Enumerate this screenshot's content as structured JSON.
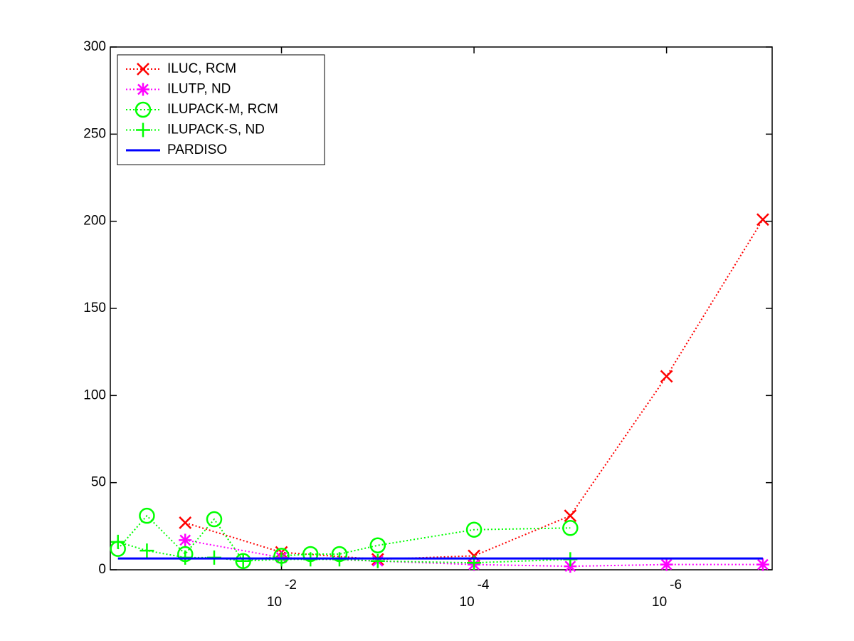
{
  "chart_data": {
    "type": "line",
    "xscale": "log",
    "xlim": [
      0.6,
      8e-08
    ],
    "ylim": [
      0,
      300
    ],
    "yticks": [
      0,
      50,
      100,
      150,
      200,
      250,
      300
    ],
    "xticks": [
      {
        "value": 0.01,
        "label": "10",
        "exponent": "-2"
      },
      {
        "value": 0.0001,
        "label": "10",
        "exponent": "-4"
      },
      {
        "value": 1e-06,
        "label": "10",
        "exponent": "-6"
      }
    ],
    "legend": "upper left",
    "series": [
      {
        "name": "ILUC, RCM",
        "color": "#ff0000",
        "marker": "x",
        "linestyle": "dotted",
        "x": [
          0.1,
          0.01,
          0.001,
          0.0001,
          1e-05,
          1e-06,
          1e-07
        ],
        "values": [
          27,
          10,
          6,
          8,
          31,
          111,
          201
        ]
      },
      {
        "name": "ILUTP,  ND",
        "color": "#ff00ff",
        "marker": "star",
        "linestyle": "dotted",
        "x": [
          0.1,
          0.01,
          0.001,
          0.0001,
          1e-05,
          1e-06,
          1e-07
        ],
        "values": [
          17,
          7,
          5,
          3,
          2,
          3,
          3
        ]
      },
      {
        "name": "ILUPACK-M, RCM",
        "color": "#00ff00",
        "marker": "circle",
        "linestyle": "dotted",
        "x": [
          0.5,
          0.25,
          0.1,
          0.05,
          0.025,
          0.01,
          0.005,
          0.0025,
          0.001,
          0.0001,
          1e-05
        ],
        "values": [
          12,
          31,
          9,
          29,
          5,
          8,
          9,
          9,
          14,
          23,
          24
        ]
      },
      {
        "name": "ILUPACK-S, ND",
        "color": "#00ff00",
        "marker": "plus",
        "linestyle": "dotted",
        "x": [
          0.5,
          0.25,
          0.1,
          0.05,
          0.025,
          0.01,
          0.005,
          0.0025,
          0.001,
          0.0001,
          1e-05
        ],
        "values": [
          16,
          11,
          7,
          7,
          5,
          6,
          6,
          6,
          5,
          4,
          6
        ]
      },
      {
        "name": "PARDISO",
        "color": "#0000ff",
        "marker": "none",
        "linestyle": "solid",
        "x": [
          0.5,
          1e-07
        ],
        "values": [
          6.5,
          6.5
        ]
      }
    ]
  }
}
